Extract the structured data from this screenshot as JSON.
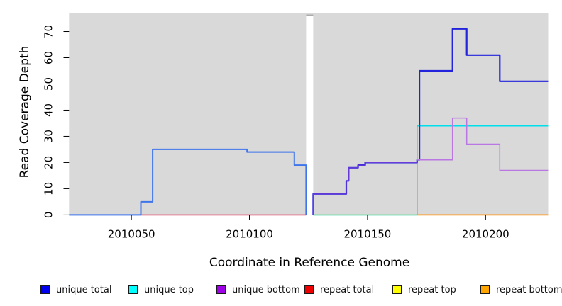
{
  "figure": {
    "title": "",
    "xlabel": "Coordinate in Reference Genome",
    "ylabel": "Read Coverage Depth"
  },
  "chart_data": {
    "type": "line",
    "subtype": "step-coverage-plot",
    "title": "",
    "xlabel": "Coordinate in Reference Genome",
    "ylabel": "Read Coverage Depth",
    "xlim": [
      2010023.6,
      2010226.5
    ],
    "ylim": [
      0,
      76.9
    ],
    "x_ticks": [
      2010050,
      2010100,
      2010150,
      2010200
    ],
    "y_ticks": [
      0,
      10,
      20,
      30,
      40,
      50,
      60,
      70
    ],
    "panel_bg": "#d9d9d9",
    "grid": false,
    "legend_position": "bottom",
    "gap": {
      "x0": 2010124,
      "x1": 2010127,
      "fill": "#ffffff",
      "cap_color": "#ababab"
    },
    "series": [
      {
        "name": "unique top",
        "legend_color": "#00FFFF",
        "parts": [
          {
            "color": "#00DFEA",
            "width": 1.6,
            "points": [
              [
                2010127,
                0
              ],
              [
                2010171,
                0
              ],
              [
                2010171,
                34
              ],
              [
                2010226.5,
                34
              ]
            ]
          }
        ]
      },
      {
        "name": "repeat total",
        "legend_color": "#EE0000",
        "parts": [
          {
            "color": "#DE4A66",
            "width": 1.6,
            "points": [
              [
                2010054,
                0
              ],
              [
                2010124,
                0
              ]
            ]
          }
        ]
      },
      {
        "name": "repeat top",
        "legend_color": "#FFFF00",
        "parts": [
          {
            "color": "#93D793",
            "width": 1.6,
            "points": [
              [
                2010127,
                0
              ],
              [
                2010171,
                0
              ]
            ]
          }
        ]
      },
      {
        "name": "repeat bottom",
        "legend_color": "#FFA500",
        "parts": [
          {
            "color": "#FF9414",
            "width": 1.8,
            "points": [
              [
                2010171,
                0
              ],
              [
                2010226.5,
                0
              ]
            ]
          }
        ]
      },
      {
        "name": "unique total",
        "legend_color": "#0000EE",
        "parts": [
          {
            "color": "#3E74EC",
            "width": 2,
            "points": [
              [
                2010023.6,
                0
              ],
              [
                2010054,
                0
              ],
              [
                2010054,
                5
              ],
              [
                2010059,
                5
              ],
              [
                2010059,
                25
              ],
              [
                2010099,
                25
              ],
              [
                2010099,
                24
              ],
              [
                2010119,
                24
              ],
              [
                2010119,
                19
              ],
              [
                2010124,
                19
              ],
              [
                2010124,
                0
              ]
            ]
          },
          {
            "color": "#2323DC",
            "width": 2.2,
            "points": [
              [
                2010127,
                0
              ],
              [
                2010127,
                8
              ],
              [
                2010141,
                8
              ],
              [
                2010141,
                13
              ],
              [
                2010142,
                13
              ],
              [
                2010142,
                18
              ],
              [
                2010146,
                18
              ],
              [
                2010146,
                19
              ],
              [
                2010149,
                19
              ],
              [
                2010149,
                20
              ],
              [
                2010171,
                20
              ],
              [
                2010171,
                21
              ],
              [
                2010172,
                21
              ],
              [
                2010172,
                55
              ],
              [
                2010186,
                55
              ],
              [
                2010186,
                71
              ],
              [
                2010192,
                71
              ],
              [
                2010192,
                61
              ],
              [
                2010206,
                61
              ],
              [
                2010206,
                51
              ],
              [
                2010226.5,
                51
              ]
            ]
          }
        ]
      },
      {
        "name": "unique bottom",
        "legend_color": "#9E00E8",
        "parts": [
          {
            "color": "#6A3BD8",
            "width": 1.3,
            "points": [
              [
                2010127,
                0
              ],
              [
                2010127,
                8
              ],
              [
                2010141,
                8
              ],
              [
                2010141,
                13
              ],
              [
                2010142,
                13
              ],
              [
                2010142,
                18
              ],
              [
                2010146,
                18
              ],
              [
                2010146,
                19
              ],
              [
                2010149,
                19
              ],
              [
                2010149,
                20
              ],
              [
                2010171,
                20
              ],
              [
                2010171,
                21
              ]
            ]
          },
          {
            "color": "#BA76E2",
            "width": 1.5,
            "points": [
              [
                2010171,
                21
              ],
              [
                2010186,
                21
              ],
              [
                2010186,
                37
              ],
              [
                2010192,
                37
              ],
              [
                2010192,
                27
              ],
              [
                2010206,
                27
              ],
              [
                2010206,
                17
              ],
              [
                2010226.5,
                17
              ]
            ]
          }
        ]
      }
    ]
  },
  "legend": {
    "items": [
      {
        "label": "unique total",
        "color": "#0000EE"
      },
      {
        "label": "unique top",
        "color": "#00FFFF"
      },
      {
        "label": "unique bottom",
        "color": "#9E00E8"
      },
      {
        "label": "repeat total",
        "color": "#EE0000"
      },
      {
        "label": "repeat top",
        "color": "#FFFF00"
      },
      {
        "label": "repeat bottom",
        "color": "#FFA500"
      }
    ]
  }
}
